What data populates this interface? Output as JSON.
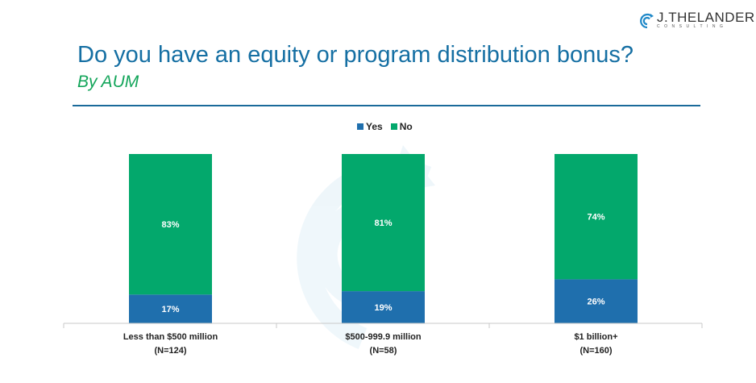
{
  "header": {
    "title": "Do you have an equity or program distribution bonus?",
    "subtitle": "By AUM",
    "logo_text": "J.THELANDER",
    "logo_sub": "CONSULTING"
  },
  "colors": {
    "yes": "#1f6fad",
    "no": "#03a86c",
    "title": "#156fa3",
    "subtitle": "#13a55a"
  },
  "chart_data": {
    "type": "bar",
    "stacked": true,
    "categories": [
      "Less than $500 million",
      "$500-999.9 million",
      "$1 billion+"
    ],
    "category_n": [
      "(N=124)",
      "(N=58)",
      "(N=160)"
    ],
    "series": [
      {
        "name": "Yes",
        "values": [
          17,
          19,
          26
        ],
        "labels": [
          "17%",
          "19%",
          "26%"
        ]
      },
      {
        "name": "No",
        "values": [
          83,
          81,
          74
        ],
        "labels": [
          "83%",
          "81%",
          "74%"
        ]
      }
    ],
    "ylim": [
      0,
      100
    ],
    "legend": "top",
    "grid": false
  }
}
